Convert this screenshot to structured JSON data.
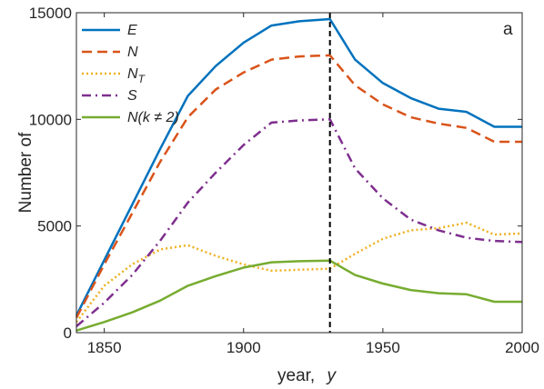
{
  "chart_data": {
    "type": "line",
    "title": "",
    "xlabel_text": "year,",
    "xlabel_var": "y",
    "ylabel": "Number of",
    "xlim": [
      1840,
      2000
    ],
    "ylim": [
      0,
      15000
    ],
    "xticks": [
      1850,
      1900,
      1950,
      2000
    ],
    "yticks": [
      0,
      5000,
      10000,
      15000
    ],
    "panel_label": "a",
    "legend_position": "top-left",
    "vline_x": 1931,
    "x": [
      1840,
      1850,
      1860,
      1870,
      1880,
      1890,
      1900,
      1910,
      1920,
      1931,
      1940,
      1950,
      1960,
      1970,
      1980,
      1990,
      2000
    ],
    "series": [
      {
        "name": "E",
        "sub": "",
        "color": "#0072BD",
        "dash": "",
        "values": [
          800,
          3400,
          6000,
          8600,
          11100,
          12500,
          13600,
          14400,
          14600,
          14700,
          12800,
          11700,
          11000,
          10500,
          10350,
          9650,
          9650
        ]
      },
      {
        "name": "N",
        "sub": "",
        "color": "#D95319",
        "dash": "11,6",
        "values": [
          700,
          3200,
          5600,
          8000,
          10100,
          11400,
          12200,
          12800,
          12950,
          13000,
          11600,
          10700,
          10100,
          9800,
          9600,
          8950,
          8950
        ]
      },
      {
        "name": "N",
        "sub": "T",
        "color": "#EDB120",
        "dash": "2,3",
        "values": [
          500,
          2200,
          3200,
          3900,
          4100,
          3600,
          3200,
          2900,
          2950,
          3000,
          3700,
          4400,
          4800,
          4900,
          5150,
          4600,
          4650
        ]
      },
      {
        "name": "S",
        "sub": "",
        "color": "#7E2F8E",
        "dash": "10,5,2,5",
        "values": [
          300,
          1400,
          2700,
          4300,
          6100,
          7500,
          8800,
          9850,
          9950,
          10000,
          7700,
          6300,
          5300,
          4800,
          4450,
          4300,
          4250
        ]
      },
      {
        "name": "N(k ≠ 2)",
        "sub": "",
        "color": "#77AC30",
        "dash": "",
        "values": [
          100,
          500,
          950,
          1500,
          2200,
          2650,
          3050,
          3300,
          3350,
          3380,
          2700,
          2300,
          2000,
          1850,
          1800,
          1450,
          1450
        ]
      }
    ]
  }
}
